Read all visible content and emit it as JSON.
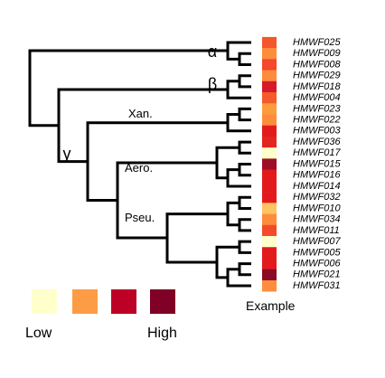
{
  "leaves": [
    {
      "label": "HMWF025",
      "color": "#f4572b"
    },
    {
      "label": "HMWF009",
      "color": "#fd8d3c"
    },
    {
      "label": "HMWF008",
      "color": "#f4472b"
    },
    {
      "label": "HMWF029",
      "color": "#fd8d3c"
    },
    {
      "label": "HMWF018",
      "color": "#d7192a"
    },
    {
      "label": "HMWF004",
      "color": "#f45a2b"
    },
    {
      "label": "HMWF023",
      "color": "#fd9c3c"
    },
    {
      "label": "HMWF022",
      "color": "#fd8d3c"
    },
    {
      "label": "HMWF003",
      "color": "#e31a1c"
    },
    {
      "label": "HMWF036",
      "color": "#e3261f"
    },
    {
      "label": "HMWF017",
      "color": "#ffffcc"
    },
    {
      "label": "HMWF015",
      "color": "#9e0d27"
    },
    {
      "label": "HMWF016",
      "color": "#e31a1c"
    },
    {
      "label": "HMWF014",
      "color": "#e31a1c"
    },
    {
      "label": "HMWF032",
      "color": "#e31a1c"
    },
    {
      "label": "HMWF010",
      "color": "#fec462"
    },
    {
      "label": "HMWF034",
      "color": "#fd8d3c"
    },
    {
      "label": "HMWF011",
      "color": "#f44a2b"
    },
    {
      "label": "HMWF007",
      "color": "#ffffcc"
    },
    {
      "label": "HMWF005",
      "color": "#e31a1c"
    },
    {
      "label": "HMWF006",
      "color": "#e31a1c"
    },
    {
      "label": "HMWF021",
      "color": "#8b0a25"
    },
    {
      "label": "HMWF031",
      "color": "#fd8d3c"
    }
  ],
  "clades": {
    "alpha": "α",
    "beta": "β",
    "gamma": "γ",
    "xan": "Xan.",
    "aero": "Aero.",
    "pseu": "Pseu."
  },
  "heatmap_label": "Example",
  "legend": {
    "colors": [
      "#ffffcc",
      "#fd9c45",
      "#bd0026",
      "#800026"
    ],
    "low": "Low",
    "high": "High"
  }
}
